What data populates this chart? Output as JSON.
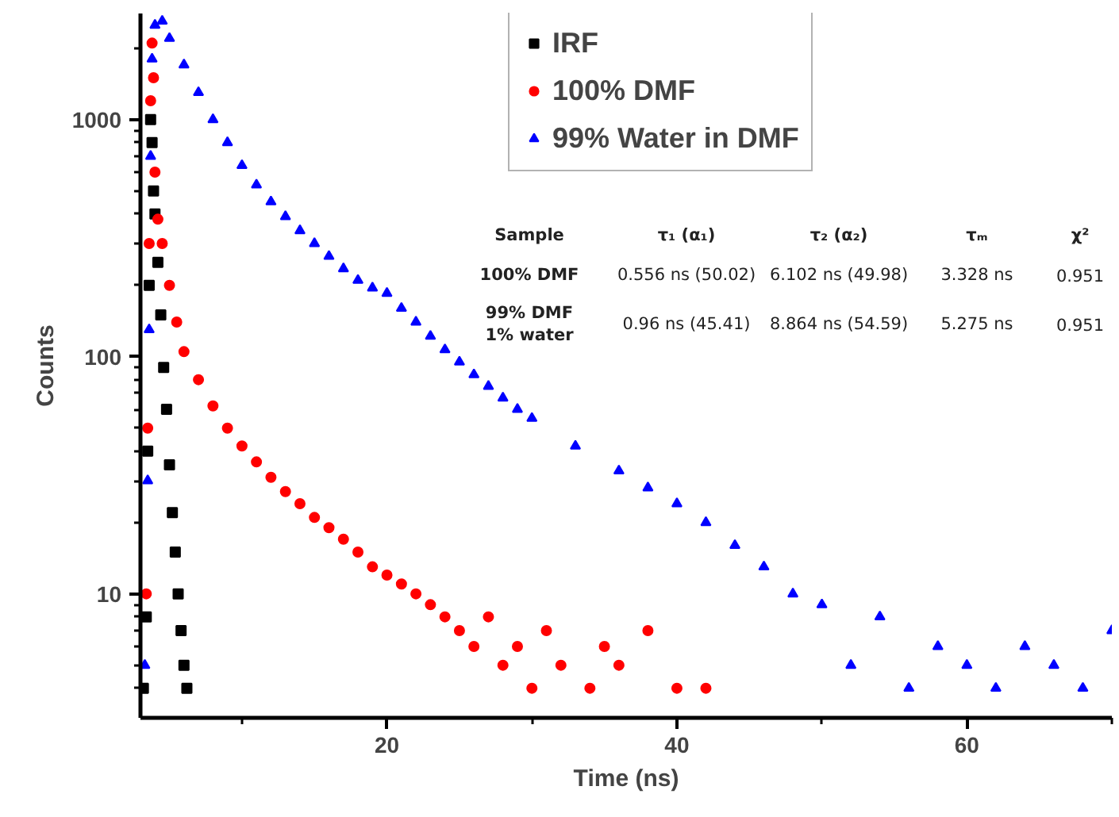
{
  "chart_data": {
    "type": "scatter",
    "xlabel": "Time (ns)",
    "ylabel": "Counts",
    "xlim": [
      3,
      70
    ],
    "ylim": [
      3,
      2800
    ],
    "log": "y",
    "grid": false,
    "legend": "top right",
    "xticks": [
      {
        "value": 10,
        "label": null
      },
      20,
      {
        "value": 30,
        "label": null
      },
      40,
      {
        "value": 50,
        "label": null
      },
      60,
      {
        "value": 70,
        "label": null
      }
    ],
    "yticks": [
      {
        "value": 4,
        "label": null
      },
      {
        "value": 5,
        "label": null
      },
      {
        "value": 6,
        "label": null
      },
      {
        "value": 7,
        "label": null
      },
      {
        "value": 8,
        "label": null
      },
      {
        "value": 9,
        "label": null
      },
      10,
      {
        "value": 20,
        "label": null
      },
      {
        "value": 30,
        "label": null
      },
      {
        "value": 40,
        "label": null
      },
      {
        "value": 50,
        "label": null
      },
      {
        "value": 60,
        "label": null
      },
      {
        "value": 70,
        "label": null
      },
      {
        "value": 80,
        "label": null
      },
      {
        "value": 90,
        "label": null
      },
      100,
      {
        "value": 200,
        "label": null
      },
      {
        "value": 300,
        "label": null
      },
      {
        "value": 400,
        "label": null
      },
      {
        "value": 500,
        "label": null
      },
      {
        "value": 600,
        "label": null
      },
      {
        "value": 700,
        "label": null
      },
      {
        "value": 800,
        "label": null
      },
      {
        "value": 900,
        "label": null
      },
      1000,
      {
        "value": 2000,
        "label": null
      }
    ],
    "series": [
      {
        "name": "IRF",
        "color": "#000000",
        "marker": "square",
        "x": [
          3.2,
          3.4,
          3.5,
          3.6,
          3.7,
          3.8,
          3.9,
          4.0,
          4.2,
          4.4,
          4.6,
          4.8,
          5.0,
          5.2,
          5.4,
          5.6,
          5.8,
          6.0,
          6.2
        ],
        "values": [
          4,
          8,
          40,
          200,
          1000,
          800,
          500,
          400,
          250,
          150,
          90,
          60,
          35,
          22,
          15,
          10,
          7,
          5,
          4
        ]
      },
      {
        "name": "100% DMF",
        "color": "#ff0000",
        "marker": "circle",
        "x": [
          3.4,
          3.5,
          3.6,
          3.7,
          3.8,
          3.9,
          4.0,
          4.2,
          4.5,
          5,
          5.5,
          6,
          7,
          8,
          9,
          10,
          11,
          12,
          13,
          14,
          15,
          16,
          17,
          18,
          19,
          20,
          21,
          22,
          23,
          24,
          25,
          26,
          27,
          28,
          29,
          30,
          31,
          32,
          34,
          35,
          36,
          38,
          40,
          42
        ],
        "values": [
          10,
          50,
          300,
          1200,
          2100,
          1500,
          600,
          380,
          300,
          200,
          140,
          105,
          80,
          62,
          50,
          42,
          36,
          31,
          27,
          24,
          21,
          19,
          17,
          15,
          13,
          12,
          11,
          10,
          9,
          8,
          7,
          6,
          8,
          5,
          6,
          4,
          7,
          5,
          4,
          6,
          5,
          7,
          4,
          4
        ]
      },
      {
        "name": "99% Water in DMF",
        "color": "#0000ff",
        "marker": "triangle",
        "x": [
          3.3,
          3.5,
          3.6,
          3.7,
          3.8,
          4,
          4.5,
          5,
          6,
          7,
          8,
          9,
          10,
          11,
          12,
          13,
          14,
          15,
          16,
          17,
          18,
          19,
          20,
          21,
          22,
          23,
          24,
          25,
          26,
          27,
          28,
          29,
          30,
          33,
          36,
          38,
          40,
          42,
          44,
          46,
          48,
          50,
          52,
          54,
          56,
          58,
          60,
          62,
          64,
          66,
          68,
          70
        ],
        "values": [
          5,
          30,
          130,
          700,
          1800,
          2500,
          2600,
          2200,
          1700,
          1300,
          1000,
          800,
          640,
          530,
          450,
          390,
          340,
          300,
          265,
          235,
          210,
          195,
          185,
          160,
          140,
          122,
          107,
          95,
          84,
          75,
          67,
          60,
          55,
          42,
          33,
          28,
          24,
          20,
          16,
          13,
          10,
          9,
          5,
          8,
          4,
          6,
          5,
          4,
          6,
          5,
          4,
          7
        ]
      }
    ],
    "annotations": [
      "Sample",
      "τ₁ (α₁)",
      "τ₂ (α₂)",
      "τₘ",
      "χ²",
      "100% DMF",
      "0.556 ns (50.02)",
      "6.102 ns (49.98)",
      "3.328 ns",
      "0.951",
      "99% DMF\n1% water",
      "0.96 ns (45.41)",
      "8.864 ns (54.59)",
      "5.275 ns",
      "0.951"
    ]
  }
}
